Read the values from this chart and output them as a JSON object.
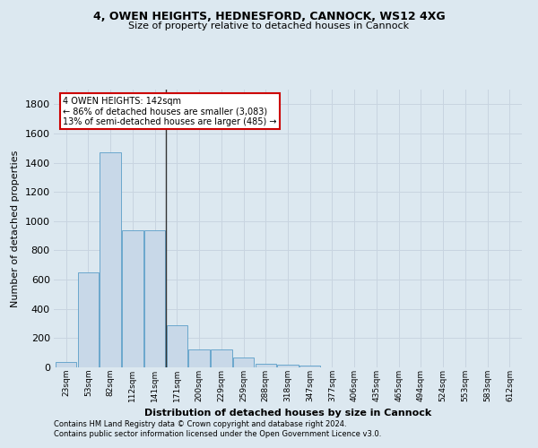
{
  "title_line1": "4, OWEN HEIGHTS, HEDNESFORD, CANNOCK, WS12 4XG",
  "title_line2": "Size of property relative to detached houses in Cannock",
  "xlabel": "Distribution of detached houses by size in Cannock",
  "ylabel": "Number of detached properties",
  "footnote1": "Contains HM Land Registry data © Crown copyright and database right 2024.",
  "footnote2": "Contains public sector information licensed under the Open Government Licence v3.0.",
  "annotation_line1": "4 OWEN HEIGHTS: 142sqm",
  "annotation_line2": "← 86% of detached houses are smaller (3,083)",
  "annotation_line3": "13% of semi-detached houses are larger (485) →",
  "bar_labels": [
    "23sqm",
    "53sqm",
    "82sqm",
    "112sqm",
    "141sqm",
    "171sqm",
    "200sqm",
    "229sqm",
    "259sqm",
    "288sqm",
    "318sqm",
    "347sqm",
    "377sqm",
    "406sqm",
    "435sqm",
    "465sqm",
    "494sqm",
    "524sqm",
    "553sqm",
    "583sqm",
    "612sqm"
  ],
  "bar_values": [
    35,
    650,
    1470,
    940,
    940,
    290,
    125,
    125,
    65,
    25,
    20,
    10,
    0,
    0,
    0,
    0,
    0,
    0,
    0,
    0,
    0
  ],
  "bar_color": "#c8d8e8",
  "bar_edge_color": "#5a9ec8",
  "vline_pos": 4.5,
  "vline_color": "#333333",
  "annotation_box_facecolor": "#ffffff",
  "annotation_box_edgecolor": "#cc0000",
  "ylim": [
    0,
    1900
  ],
  "yticks": [
    0,
    200,
    400,
    600,
    800,
    1000,
    1200,
    1400,
    1600,
    1800
  ],
  "grid_color": "#c8d4e0",
  "bg_color": "#dce8f0",
  "plot_bg_color": "#dce8f0",
  "title_fontsize": 9,
  "subtitle_fontsize": 8,
  "ylabel_fontsize": 8,
  "xlabel_fontsize": 8,
  "ytick_fontsize": 8,
  "xtick_fontsize": 6.5,
  "footnote_fontsize": 6,
  "annotation_fontsize": 7
}
